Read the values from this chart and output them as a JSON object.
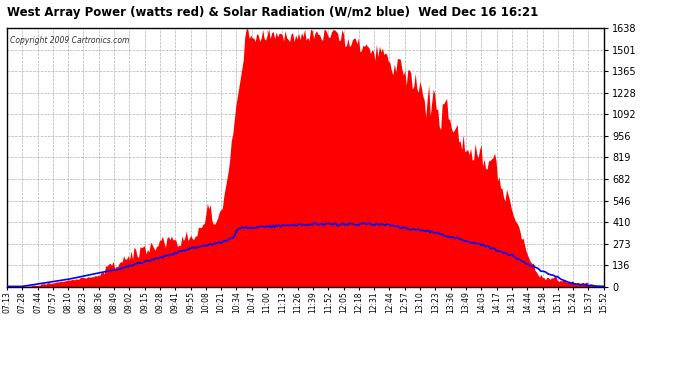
{
  "title": "West Array Power (watts red) & Solar Radiation (W/m2 blue)  Wed Dec 16 16:21",
  "copyright": "Copyright 2009 Cartronics.com",
  "background_color": "#ffffff",
  "plot_bg_color": "#ffffff",
  "grid_color": "#b0b0b0",
  "y_ticks": [
    0.0,
    136.5,
    273.0,
    409.5,
    546.0,
    682.5,
    819.0,
    955.5,
    1092.0,
    1228.4,
    1364.9,
    1501.4,
    1637.9
  ],
  "x_labels": [
    "07:13",
    "07:28",
    "07:44",
    "07:57",
    "08:10",
    "08:23",
    "08:36",
    "08:49",
    "09:02",
    "09:15",
    "09:28",
    "09:41",
    "09:55",
    "10:08",
    "10:21",
    "10:34",
    "10:47",
    "11:00",
    "11:13",
    "11:26",
    "11:39",
    "11:52",
    "12:05",
    "12:18",
    "12:31",
    "12:44",
    "12:57",
    "13:10",
    "13:23",
    "13:36",
    "13:49",
    "14:03",
    "14:17",
    "14:31",
    "14:44",
    "14:58",
    "15:11",
    "15:24",
    "15:37",
    "15:52"
  ],
  "power_color": "red",
  "solar_color": "blue",
  "ymax": 1637.9,
  "ymin": 0.0,
  "n_labels": 40,
  "n_points": 400
}
